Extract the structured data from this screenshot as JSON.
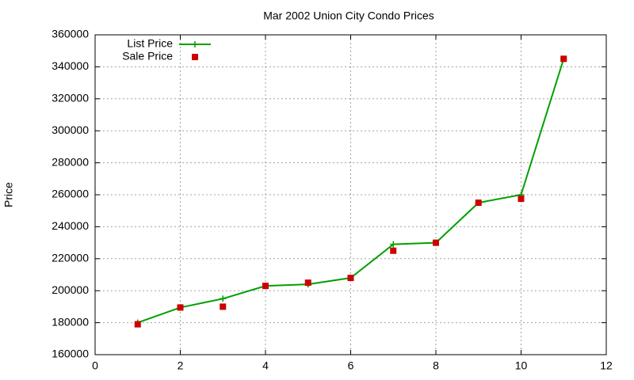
{
  "chart_data": {
    "type": "line",
    "title": "Mar 2002 Union City Condo Prices",
    "y_label": "Price",
    "xlim": [
      0,
      12
    ],
    "xticks": [
      0,
      2,
      4,
      6,
      8,
      10,
      12
    ],
    "ylim": [
      160000,
      360000
    ],
    "yticks": [
      160000,
      180000,
      200000,
      220000,
      240000,
      260000,
      280000,
      300000,
      320000,
      340000,
      360000
    ],
    "grid": true,
    "legend": "top-left",
    "x": [
      1,
      2,
      3,
      4,
      5,
      6,
      7,
      8,
      9,
      10,
      11
    ],
    "series": [
      {
        "name": "List Price",
        "color": "#00a000",
        "style": "linespoints",
        "values": [
          180000,
          189500,
          195000,
          203000,
          204000,
          208000,
          229000,
          230000,
          255000,
          260000,
          345000
        ]
      },
      {
        "name": "Sale Price",
        "color": "#cc0000",
        "style": "points",
        "values": [
          179000,
          189500,
          190000,
          203000,
          205000,
          208000,
          225000,
          230000,
          255000,
          257500,
          345000
        ]
      }
    ]
  }
}
